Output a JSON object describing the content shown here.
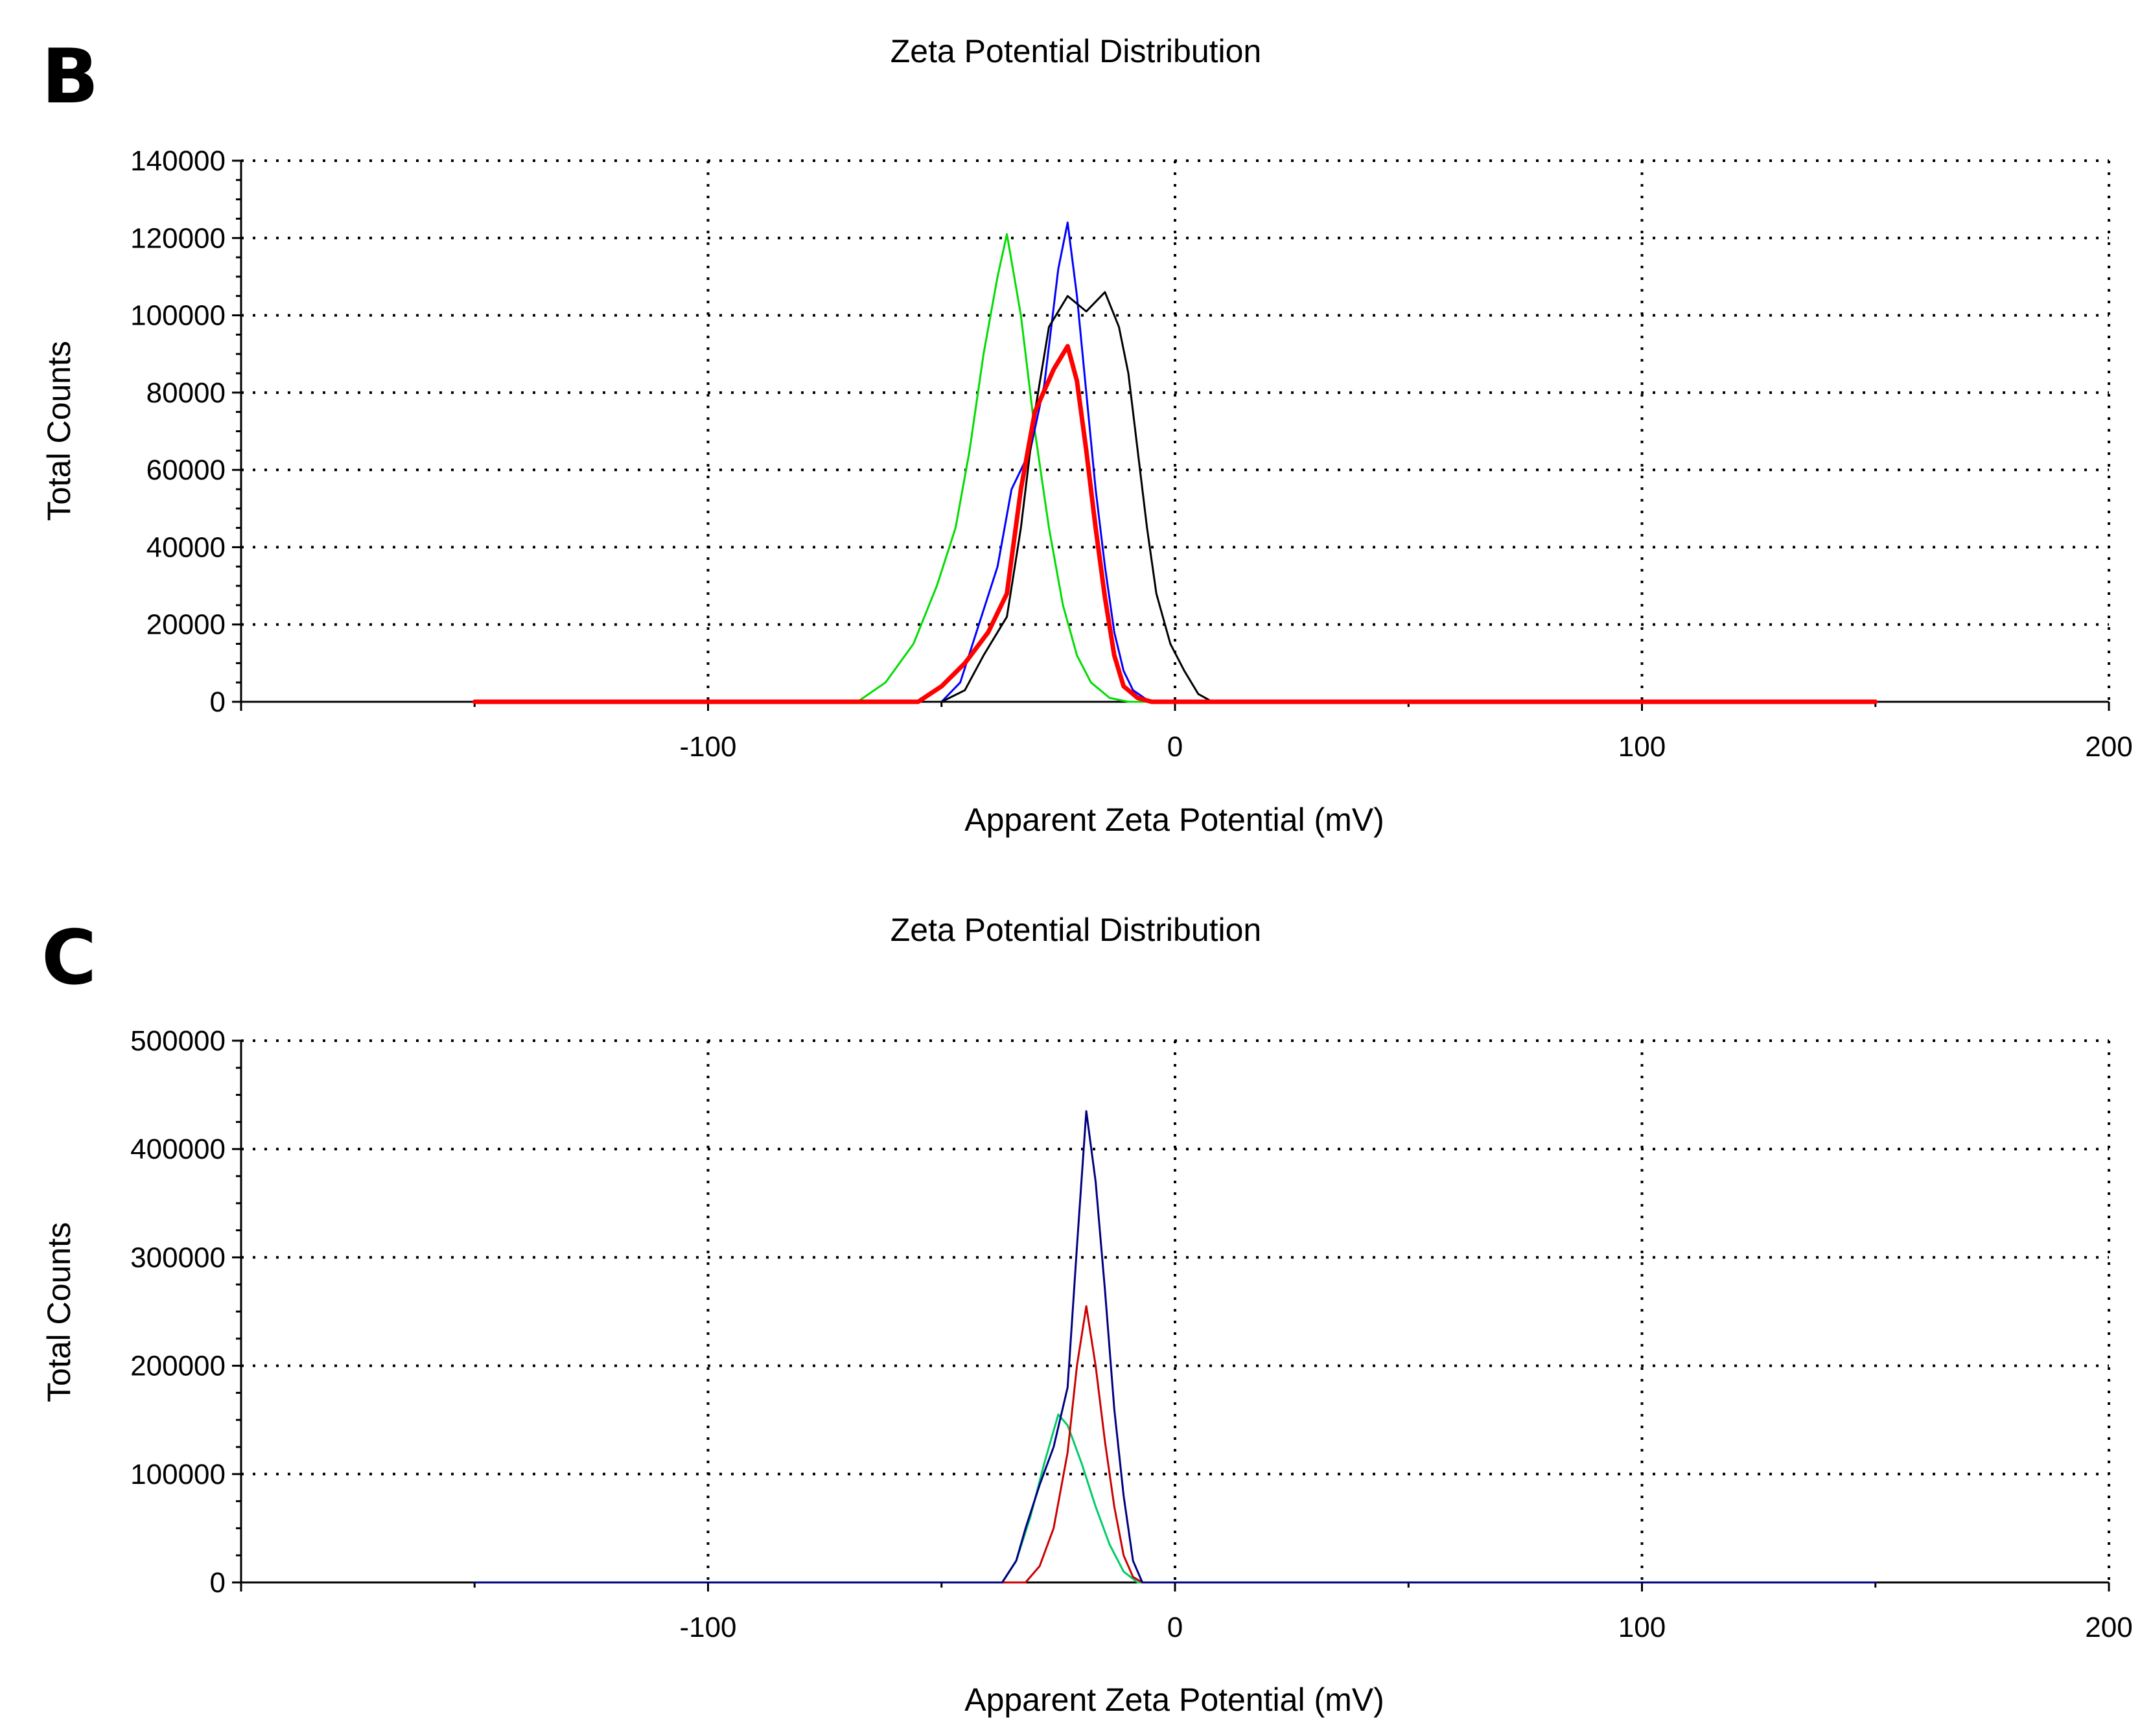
{
  "chart_data": [
    {
      "panel": "B",
      "type": "line",
      "title": "Zeta Potential Distribution",
      "xlabel": "Apparent Zeta Potential (mV)",
      "ylabel": "Total Counts",
      "xlim": [
        -200,
        200
      ],
      "ylim": [
        0,
        140000
      ],
      "xticks": [
        -100,
        0,
        100,
        200
      ],
      "yticks": [
        0,
        20000,
        40000,
        60000,
        80000,
        100000,
        120000,
        140000
      ],
      "grid": true,
      "series": [
        {
          "color": "#00dd00",
          "width": 3,
          "points": [
            [
              -150,
              0
            ],
            [
              -80,
              0
            ],
            [
              -68,
              0
            ],
            [
              -62,
              5000
            ],
            [
              -56,
              15000
            ],
            [
              -51,
              30000
            ],
            [
              -47,
              45000
            ],
            [
              -44,
              65000
            ],
            [
              -41,
              90000
            ],
            [
              -38,
              110000
            ],
            [
              -36,
              121000
            ],
            [
              -33,
              100000
            ],
            [
              -30,
              70000
            ],
            [
              -27,
              45000
            ],
            [
              -24,
              25000
            ],
            [
              -21,
              12000
            ],
            [
              -18,
              5000
            ],
            [
              -14,
              1000
            ],
            [
              -10,
              0
            ],
            [
              150,
              0
            ]
          ]
        },
        {
          "color": "#0000ff",
          "width": 3,
          "points": [
            [
              -150,
              0
            ],
            [
              -60,
              0
            ],
            [
              -50,
              0
            ],
            [
              -46,
              5000
            ],
            [
              -42,
              20000
            ],
            [
              -38,
              35000
            ],
            [
              -35,
              55000
            ],
            [
              -31,
              65000
            ],
            [
              -28,
              82000
            ],
            [
              -25,
              112000
            ],
            [
              -23,
              124000
            ],
            [
              -21,
              105000
            ],
            [
              -19,
              80000
            ],
            [
              -17,
              55000
            ],
            [
              -15,
              35000
            ],
            [
              -13,
              18000
            ],
            [
              -11,
              8000
            ],
            [
              -9,
              3000
            ],
            [
              -6,
              500
            ],
            [
              -3,
              0
            ],
            [
              150,
              0
            ]
          ]
        },
        {
          "color": "#000000",
          "width": 3,
          "points": [
            [
              -150,
              0
            ],
            [
              -60,
              0
            ],
            [
              -50,
              0
            ],
            [
              -45,
              3000
            ],
            [
              -41,
              12000
            ],
            [
              -36,
              22000
            ],
            [
              -33,
              45000
            ],
            [
              -30,
              75000
            ],
            [
              -27,
              97000
            ],
            [
              -23,
              105000
            ],
            [
              -19,
              101000
            ],
            [
              -15,
              106000
            ],
            [
              -12,
              97000
            ],
            [
              -10,
              85000
            ],
            [
              -8,
              65000
            ],
            [
              -6,
              45000
            ],
            [
              -4,
              28000
            ],
            [
              -1,
              15000
            ],
            [
              2,
              8000
            ],
            [
              5,
              2000
            ],
            [
              8,
              0
            ],
            [
              150,
              0
            ]
          ]
        },
        {
          "color": "#ff0000",
          "width": 7,
          "points": [
            [
              -150,
              0
            ],
            [
              -60,
              0
            ],
            [
              -55,
              0
            ],
            [
              -50,
              4000
            ],
            [
              -45,
              10000
            ],
            [
              -40,
              18000
            ],
            [
              -36,
              28000
            ],
            [
              -33,
              55000
            ],
            [
              -30,
              75000
            ],
            [
              -26,
              86000
            ],
            [
              -23,
              92000
            ],
            [
              -21,
              83000
            ],
            [
              -19,
              65000
            ],
            [
              -17,
              45000
            ],
            [
              -15,
              27000
            ],
            [
              -13,
              12000
            ],
            [
              -11,
              4000
            ],
            [
              -8,
              1000
            ],
            [
              -5,
              0
            ],
            [
              150,
              0
            ]
          ]
        }
      ]
    },
    {
      "panel": "C",
      "type": "line",
      "title": "Zeta Potential Distribution",
      "xlabel": "Apparent Zeta Potential (mV)",
      "ylabel": "Total Counts",
      "xlim": [
        -200,
        200
      ],
      "ylim": [
        0,
        500000
      ],
      "xticks": [
        -100,
        0,
        100,
        200
      ],
      "yticks": [
        0,
        100000,
        200000,
        300000,
        400000,
        500000
      ],
      "grid": true,
      "series": [
        {
          "color": "#00cc66",
          "width": 3,
          "points": [
            [
              -150,
              0
            ],
            [
              -50,
              0
            ],
            [
              -37,
              0
            ],
            [
              -34,
              20000
            ],
            [
              -31,
              60000
            ],
            [
              -28,
              110000
            ],
            [
              -25,
              155000
            ],
            [
              -23,
              145000
            ],
            [
              -20,
              110000
            ],
            [
              -17,
              70000
            ],
            [
              -14,
              35000
            ],
            [
              -11,
              10000
            ],
            [
              -8,
              0
            ],
            [
              150,
              0
            ]
          ]
        },
        {
          "color": "#cc0000",
          "width": 3,
          "points": [
            [
              -150,
              0
            ],
            [
              -50,
              0
            ],
            [
              -32,
              0
            ],
            [
              -29,
              15000
            ],
            [
              -26,
              50000
            ],
            [
              -23,
              120000
            ],
            [
              -21,
              200000
            ],
            [
              -19,
              255000
            ],
            [
              -17,
              200000
            ],
            [
              -15,
              130000
            ],
            [
              -13,
              70000
            ],
            [
              -11,
              25000
            ],
            [
              -9,
              5000
            ],
            [
              -7,
              0
            ],
            [
              150,
              0
            ]
          ]
        },
        {
          "color": "#000080",
          "width": 3,
          "points": [
            [
              -150,
              0
            ],
            [
              -50,
              0
            ],
            [
              -37,
              0
            ],
            [
              -34,
              20000
            ],
            [
              -32,
              50000
            ],
            [
              -29,
              90000
            ],
            [
              -26,
              125000
            ],
            [
              -23,
              180000
            ],
            [
              -21,
              310000
            ],
            [
              -19,
              435000
            ],
            [
              -17,
              370000
            ],
            [
              -15,
              270000
            ],
            [
              -13,
              160000
            ],
            [
              -11,
              80000
            ],
            [
              -9,
              20000
            ],
            [
              -7,
              0
            ],
            [
              150,
              0
            ]
          ]
        }
      ]
    }
  ]
}
